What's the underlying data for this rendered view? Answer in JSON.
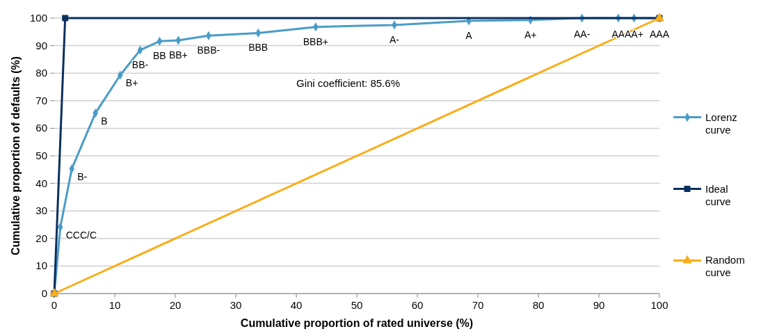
{
  "chart_data": {
    "type": "line",
    "xlabel": "Cumulative proportion of rated universe (%)",
    "ylabel": "Cumulative proportion of defaults (%)",
    "xlim": [
      0,
      100
    ],
    "xticks": [
      0,
      10,
      20,
      30,
      40,
      50,
      60,
      70,
      80,
      90,
      100
    ],
    "ylim": [
      0,
      100
    ],
    "yticks": [
      0,
      10,
      20,
      30,
      40,
      50,
      60,
      70,
      80,
      90,
      100
    ],
    "grid": "y",
    "legend": "right",
    "series": [
      {
        "name": "Lorenz curve",
        "color": "#4a9cc8",
        "marker": "diamond",
        "x": [
          0,
          1.0,
          2.9,
          6.8,
          10.9,
          14.2,
          17.4,
          20.5,
          25.5,
          33.7,
          43.2,
          56.2,
          68.5,
          78.7,
          87.2,
          93.2,
          95.8,
          100
        ],
        "values": [
          0,
          24.1,
          45.3,
          65.5,
          79.3,
          88.4,
          91.6,
          91.9,
          93.6,
          94.6,
          96.8,
          97.5,
          99.0,
          99.3,
          100,
          100,
          100,
          100
        ]
      },
      {
        "name": "Ideal curve",
        "color": "#0b2f5e",
        "marker": "square",
        "x": [
          0,
          1.8,
          100
        ],
        "values": [
          0,
          100,
          100
        ]
      },
      {
        "name": "Random curve",
        "color": "#fbad18",
        "marker": "triangle",
        "x": [
          0,
          100
        ],
        "values": [
          0,
          100
        ]
      }
    ],
    "annotations": [
      {
        "text": "CCC/C",
        "x": 1.0,
        "y": 24.1
      },
      {
        "text": "B-",
        "x": 2.9,
        "y": 45.3
      },
      {
        "text": "B",
        "x": 6.8,
        "y": 65.5
      },
      {
        "text": "B+",
        "x": 10.9,
        "y": 79.3
      },
      {
        "text": "BB-",
        "x": 14.2,
        "y": 88.4
      },
      {
        "text": "BB",
        "x": 17.4,
        "y": 91.6
      },
      {
        "text": "BB+",
        "x": 20.5,
        "y": 91.9
      },
      {
        "text": "BBB-",
        "x": 25.5,
        "y": 93.6
      },
      {
        "text": "BBB",
        "x": 33.7,
        "y": 94.6
      },
      {
        "text": "BBB+",
        "x": 43.2,
        "y": 96.8
      },
      {
        "text": "A-",
        "x": 56.2,
        "y": 97.5
      },
      {
        "text": "A",
        "x": 68.5,
        "y": 99.0
      },
      {
        "text": "A+",
        "x": 78.7,
        "y": 99.3
      },
      {
        "text": "AA-",
        "x": 87.2,
        "y": 100
      },
      {
        "text": "AA",
        "x": 93.2,
        "y": 100
      },
      {
        "text": "AA+",
        "x": 95.8,
        "y": 100
      },
      {
        "text": "AAA",
        "x": 100,
        "y": 100
      },
      "Gini coefficient: 85.6%"
    ]
  }
}
